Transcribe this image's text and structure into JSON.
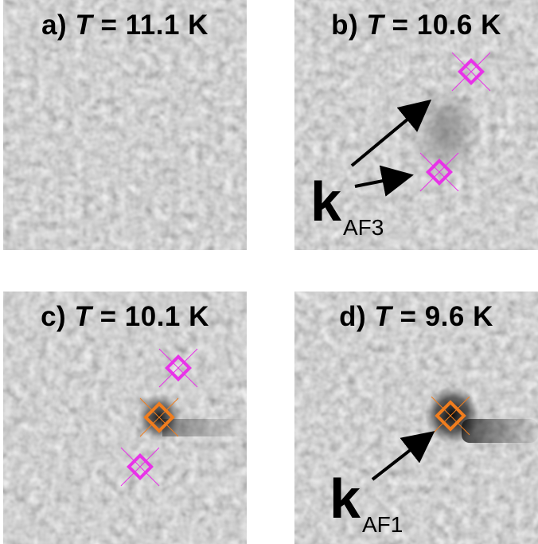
{
  "panels": {
    "a": {
      "letter": "a)",
      "tvar": "T",
      "eq": "=",
      "temp": "11.1 K"
    },
    "b": {
      "letter": "b)",
      "tvar": "T",
      "eq": "=",
      "temp": "10.6 K",
      "arrow_label": "k",
      "arrow_sub": "AF3"
    },
    "c": {
      "letter": "c)",
      "tvar": "T",
      "eq": "=",
      "temp": "10.1 K"
    },
    "d": {
      "letter": "d)",
      "tvar": "T",
      "eq": "=",
      "temp": "9.6 K",
      "arrow_label": "k",
      "arrow_sub": "AF1"
    }
  },
  "colors": {
    "kaf3_marker": "#e832e8",
    "kaf1_marker": "#f07d1e",
    "arrows": "#000000",
    "background_gray": "#b8b8b8"
  },
  "icons": [
    "diamond-marker-kaf3",
    "diamond-marker-kaf1",
    "arrow-icon"
  ]
}
